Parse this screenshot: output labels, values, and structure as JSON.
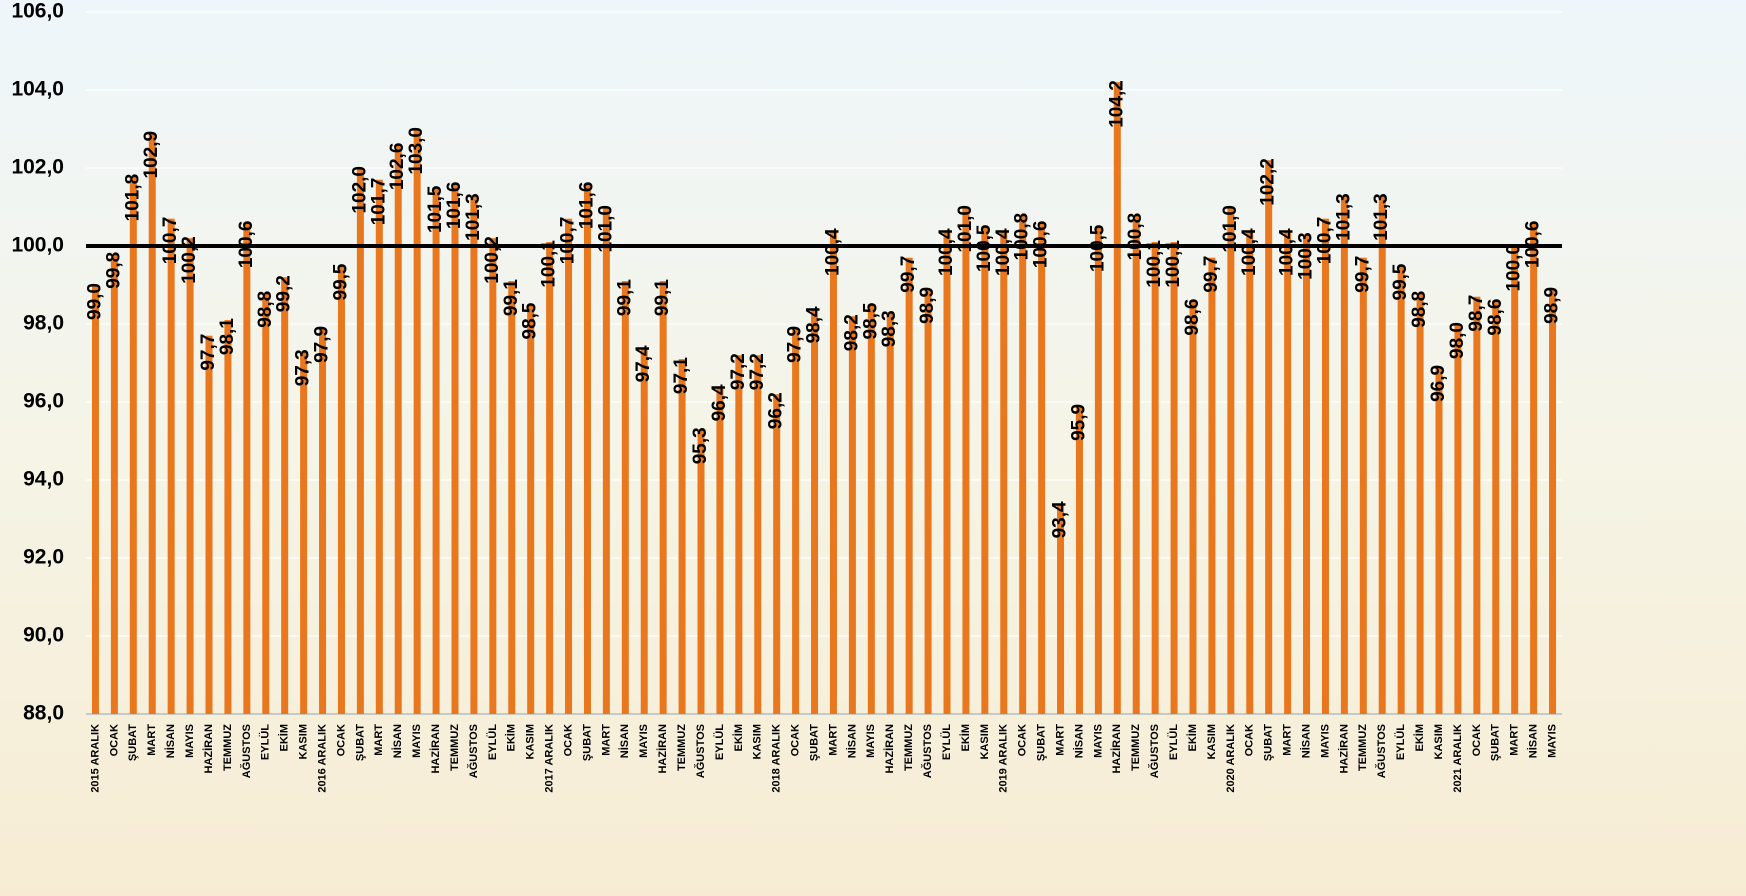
{
  "chart_data": {
    "type": "bar",
    "categories": [
      "2015 ARALIK",
      "OCAK",
      "ŞUBAT",
      "MART",
      "NİSAN",
      "MAYIS",
      "HAZİRAN",
      "TEMMUZ",
      "AĞUSTOS",
      "EYLÜL",
      "EKİM",
      "KASIM",
      "2016 ARALIK",
      "OCAK",
      "ŞUBAT",
      "MART",
      "NİSAN",
      "MAYIS",
      "HAZİRAN",
      "TEMMUZ",
      "AĞUSTOS",
      "EYLÜL",
      "EKİM",
      "KASIM",
      "2017 ARALIK",
      "OCAK",
      "ŞUBAT",
      "MART",
      "NİSAN",
      "MAYIS",
      "HAZİRAN",
      "TEMMUZ",
      "AĞUSTOS",
      "EYLÜL",
      "EKİM",
      "KASIM",
      "2018 ARALIK",
      "OCAK",
      "ŞUBAT",
      "MART",
      "NİSAN",
      "MAYIS",
      "HAZİRAN",
      "TEMMUZ",
      "AĞUSTOS",
      "EYLÜL",
      "EKİM",
      "KASIM",
      "2019 ARALIK",
      "OCAK",
      "ŞUBAT",
      "MART",
      "NİSAN",
      "MAYIS",
      "HAZİRAN",
      "TEMMUZ",
      "AĞUSTOS",
      "EYLÜL",
      "EKİM",
      "KASIM",
      "2020 ARALIK",
      "OCAK",
      "ŞUBAT",
      "MART",
      "NİSAN",
      "MAYIS",
      "HAZİRAN",
      "TEMMUZ",
      "AĞUSTOS",
      "EYLÜL",
      "EKİM",
      "KASIM",
      "2021 ARALIK",
      "OCAK",
      "ŞUBAT",
      "MART",
      "NİSAN",
      "MAYIS"
    ],
    "values": [
      99.0,
      99.8,
      101.8,
      102.9,
      100.7,
      100.2,
      97.7,
      98.1,
      100.6,
      98.8,
      99.2,
      97.3,
      97.9,
      99.5,
      102.0,
      101.7,
      102.6,
      103.0,
      101.5,
      101.6,
      101.3,
      100.2,
      99.1,
      98.5,
      100.1,
      100.7,
      101.6,
      101.0,
      99.1,
      97.4,
      99.1,
      97.1,
      95.3,
      96.4,
      97.2,
      97.2,
      96.2,
      97.9,
      98.4,
      100.4,
      98.2,
      98.5,
      98.3,
      99.7,
      98.9,
      100.4,
      101.0,
      100.5,
      100.4,
      100.8,
      100.6,
      93.4,
      95.9,
      100.5,
      104.2,
      100.8,
      100.1,
      100.1,
      98.6,
      99.7,
      101.0,
      100.4,
      102.2,
      100.4,
      100.3,
      100.7,
      101.3,
      99.7,
      101.3,
      99.5,
      98.8,
      96.9,
      98.0,
      98.7,
      98.6,
      100.0,
      100.6,
      98.9
    ],
    "value_labels": [
      "99,0",
      "99,8",
      "101,8",
      "102,9",
      "100,7",
      "100,2",
      "97,7",
      "98,1",
      "100,6",
      "98,8",
      "99,2",
      "97,3",
      "97,9",
      "99,5",
      "102,0",
      "101,7",
      "102,6",
      "103,0",
      "101,5",
      "101,6",
      "101,3",
      "100,2",
      "99,1",
      "98,5",
      "100,1",
      "100,7",
      "101,6",
      "101,0",
      "99,1",
      "97,4",
      "99,1",
      "97,1",
      "95,3",
      "96,4",
      "97,2",
      "97,2",
      "96,2",
      "97,9",
      "98,4",
      "100,4",
      "98,2",
      "98,5",
      "98,3",
      "99,7",
      "98,9",
      "100,4",
      "101,0",
      "100,5",
      "100,4",
      "100,8",
      "100,6",
      "93,4",
      "95,9",
      "100,5",
      "104,2",
      "100,8",
      "100,1",
      "100,1",
      "98,6",
      "99,7",
      "101,0",
      "100,4",
      "102,2",
      "100,4",
      "100,3",
      "100,7",
      "101,3",
      "99,7",
      "101,3",
      "99,5",
      "98,8",
      "96,9",
      "98,0",
      "98,7",
      "98,6",
      "100,0",
      "100,6",
      "98,9"
    ],
    "color": "#e8771e",
    "ylim": [
      88,
      106
    ],
    "yticks": [
      {
        "value": 88,
        "label": "88,0"
      },
      {
        "value": 90,
        "label": "90,0"
      },
      {
        "value": 92,
        "label": "92,0"
      },
      {
        "value": 94,
        "label": "94,0"
      },
      {
        "value": 96,
        "label": "96,0"
      },
      {
        "value": 98,
        "label": "98,0"
      },
      {
        "value": 100,
        "label": "100,0"
      },
      {
        "value": 102,
        "label": "102,0"
      },
      {
        "value": 104,
        "label": "104,0"
      },
      {
        "value": 106,
        "label": "106,0"
      }
    ],
    "grid": true,
    "reference_line": 100
  }
}
